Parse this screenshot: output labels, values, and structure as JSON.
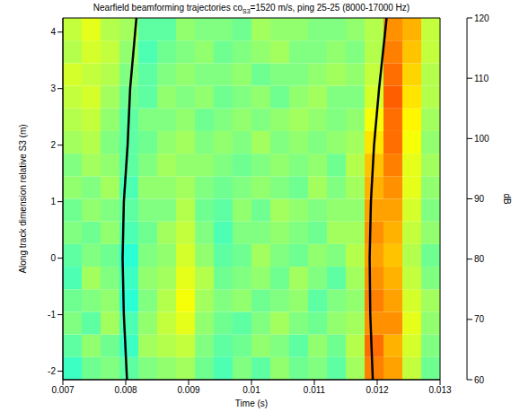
{
  "chart_data": {
    "type": "heatmap",
    "title": {
      "text": "Nearfield beamforming trajectories co",
      "subscript": "S3",
      "after": "=1520 m/s, ping 25-25 (8000-17000 Hz)"
    },
    "x_label": "Time (s)",
    "y_label": "Along track dimension relative S3 (m)",
    "xlim": [
      0.007,
      0.013
    ],
    "xticks": [
      0.007,
      0.008,
      0.009,
      0.01,
      0.011,
      0.012,
      0.013
    ],
    "ylim": [
      -2.15,
      4.25
    ],
    "yticks": [
      -2,
      -1,
      0,
      1,
      2,
      3,
      4
    ],
    "heatmap": {
      "x_edges": [
        0.007,
        0.0073,
        0.0076,
        0.0079,
        0.0082,
        0.0085,
        0.0088,
        0.0091,
        0.0094,
        0.0097,
        0.01,
        0.0103,
        0.0106,
        0.0109,
        0.0112,
        0.0115,
        0.0118,
        0.0121,
        0.0124,
        0.0127,
        0.013
      ],
      "y_edges": [
        -2.15,
        -1.75,
        -1.35,
        -0.95,
        -0.55,
        -0.15,
        0.25,
        0.65,
        1.05,
        1.45,
        1.85,
        2.25,
        2.65,
        3.05,
        3.45,
        3.85,
        4.25
      ],
      "values": [
        [
          86,
          89,
          90,
          88,
          90,
          91,
          92,
          89,
          87,
          90,
          88,
          91,
          89,
          90,
          88,
          92,
          105,
          103,
          94,
          89
        ],
        [
          88,
          91,
          89,
          86,
          92,
          93,
          94,
          90,
          88,
          89,
          91,
          90,
          88,
          91,
          89,
          93,
          106,
          102,
          95,
          90
        ],
        [
          90,
          88,
          92,
          87,
          91,
          94,
          96,
          91,
          89,
          88,
          90,
          92,
          90,
          89,
          91,
          92,
          104,
          104,
          96,
          91
        ],
        [
          89,
          90,
          91,
          85,
          90,
          93,
          97,
          92,
          90,
          91,
          89,
          90,
          91,
          88,
          90,
          91,
          105,
          103,
          95,
          92
        ],
        [
          87,
          92,
          90,
          86,
          91,
          92,
          96,
          93,
          89,
          90,
          91,
          89,
          92,
          90,
          88,
          92,
          104,
          102,
          94,
          90
        ],
        [
          88,
          90,
          89,
          85,
          90,
          91,
          95,
          91,
          88,
          89,
          92,
          90,
          89,
          91,
          90,
          93,
          103,
          101,
          93,
          89
        ],
        [
          90,
          89,
          91,
          87,
          89,
          92,
          94,
          90,
          87,
          90,
          90,
          91,
          90,
          89,
          92,
          92,
          104,
          102,
          94,
          91
        ],
        [
          89,
          91,
          90,
          88,
          90,
          90,
          93,
          89,
          88,
          91,
          89,
          92,
          91,
          90,
          91,
          91,
          103,
          103,
          95,
          90
        ],
        [
          91,
          90,
          92,
          87,
          91,
          91,
          92,
          90,
          89,
          90,
          91,
          90,
          89,
          92,
          90,
          92,
          102,
          104,
          96,
          91
        ],
        [
          90,
          92,
          91,
          88,
          90,
          92,
          91,
          91,
          90,
          89,
          90,
          91,
          90,
          91,
          89,
          93,
          101,
          105,
          96,
          92
        ],
        [
          92,
          93,
          90,
          88,
          89,
          91,
          92,
          90,
          91,
          90,
          92,
          90,
          91,
          90,
          91,
          92,
          99,
          106,
          97,
          91
        ],
        [
          93,
          94,
          91,
          88,
          90,
          90,
          91,
          89,
          90,
          91,
          90,
          91,
          92,
          91,
          90,
          91,
          97,
          106,
          98,
          92
        ],
        [
          94,
          95,
          92,
          89,
          88,
          91,
          90,
          91,
          89,
          90,
          91,
          89,
          91,
          92,
          90,
          90,
          95,
          107,
          99,
          93
        ],
        [
          95,
          94,
          93,
          90,
          88,
          90,
          91,
          90,
          90,
          91,
          89,
          90,
          90,
          91,
          92,
          91,
          94,
          106,
          100,
          93
        ],
        [
          93,
          95,
          94,
          91,
          87,
          89,
          90,
          91,
          89,
          90,
          91,
          92,
          90,
          90,
          91,
          90,
          93,
          105,
          101,
          94
        ],
        [
          94,
          96,
          93,
          92,
          88,
          88,
          91,
          90,
          90,
          89,
          92,
          91,
          91,
          90,
          90,
          91,
          93,
          104,
          102,
          94
        ]
      ]
    },
    "colorbar": {
      "range": [
        60,
        120
      ],
      "ticks": [
        60,
        70,
        80,
        90,
        100,
        110,
        120
      ],
      "label": "dB"
    },
    "series": [
      {
        "type": "line",
        "color": "#000000",
        "x": [
          0.00802,
          0.00797,
          0.00795,
          0.00797,
          0.00803,
          0.00807,
          0.00817
        ],
        "y": [
          -2.15,
          -1,
          0,
          1,
          2,
          3,
          4.25
        ]
      },
      {
        "type": "line",
        "color": "#000000",
        "x": [
          0.01193,
          0.01189,
          0.01188,
          0.0119,
          0.01195,
          0.01203,
          0.01215
        ],
        "y": [
          -2.15,
          -1,
          0,
          1,
          2,
          3,
          4.25
        ]
      }
    ]
  }
}
